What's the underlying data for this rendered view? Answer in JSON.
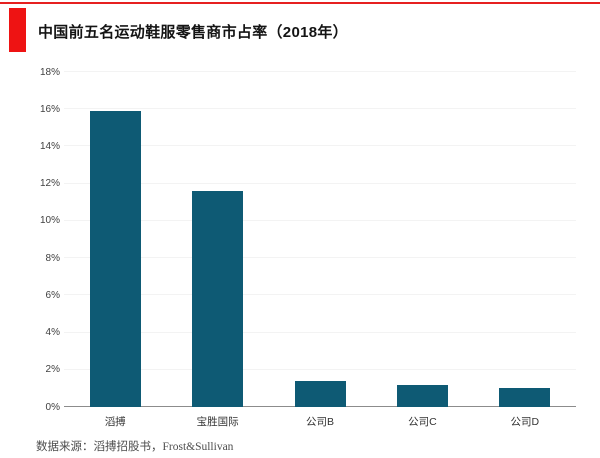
{
  "page": {
    "background": "#ffffff",
    "top_rule_color": "#e62020"
  },
  "header": {
    "accent_block_color": "#ee1313",
    "title": "中国前五名运动鞋服零售商市占率（2018年）"
  },
  "chart_data": {
    "type": "bar",
    "title": "中国前五名运动鞋服零售商市占率（2018年）",
    "categories": [
      "滔搏",
      "宝胜国际",
      "公司B",
      "公司C",
      "公司D"
    ],
    "values": [
      15.9,
      11.6,
      1.4,
      1.2,
      1.0
    ],
    "unit": "%",
    "xlabel": "",
    "ylabel": "",
    "ylim": [
      0,
      18
    ],
    "ytick_step": 2,
    "ytick_labels": [
      "0%",
      "2%",
      "4%",
      "6%",
      "8%",
      "10%",
      "12%",
      "14%",
      "16%",
      "18%"
    ],
    "bar_color": "#0e5a74",
    "gridline_color": "#f3f3f3",
    "axis_line_color": "#8c8c8c",
    "grid": true,
    "legend": false
  },
  "footer": {
    "source_text": "数据来源：滔搏招股书，Frost&Sullivan"
  }
}
